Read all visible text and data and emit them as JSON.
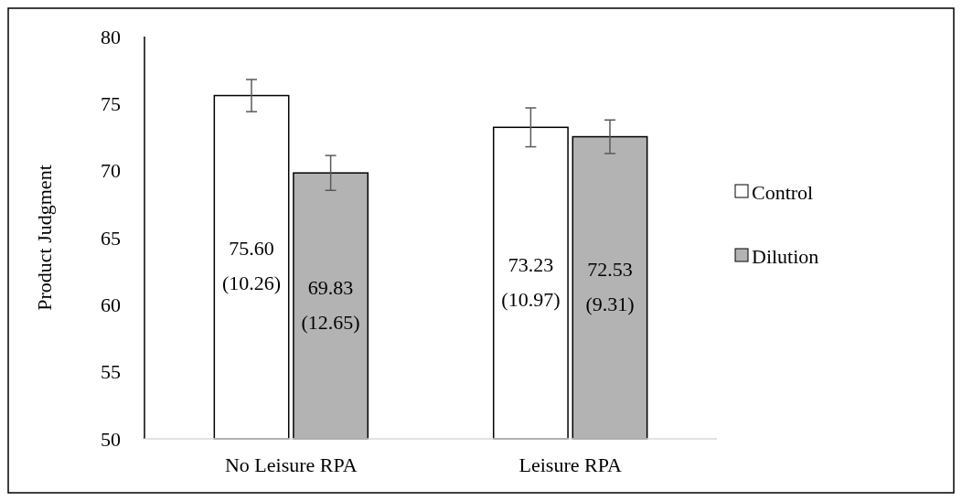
{
  "chart_data": {
    "type": "bar",
    "ylabel": "Product Judgment",
    "categories": [
      "No Leisure RPA",
      "Leisure RPA"
    ],
    "series": [
      {
        "name": "Control",
        "color": "#ffffff",
        "values": [
          75.6,
          73.23
        ],
        "errors": [
          1.2,
          1.45
        ],
        "value_labels": [
          "75.60 (10.26)",
          "73.23 (10.97)"
        ]
      },
      {
        "name": "Dilution",
        "color": "#b3b3b3",
        "values": [
          69.83,
          72.53
        ],
        "errors": [
          1.3,
          1.25
        ],
        "value_labels": [
          "69.83 (12.65)",
          "72.53 (9.31)"
        ]
      }
    ],
    "ylim": [
      50,
      80
    ],
    "yticks": [
      50,
      55,
      60,
      65,
      70,
      75,
      80
    ],
    "grid": false,
    "legend": "right"
  }
}
